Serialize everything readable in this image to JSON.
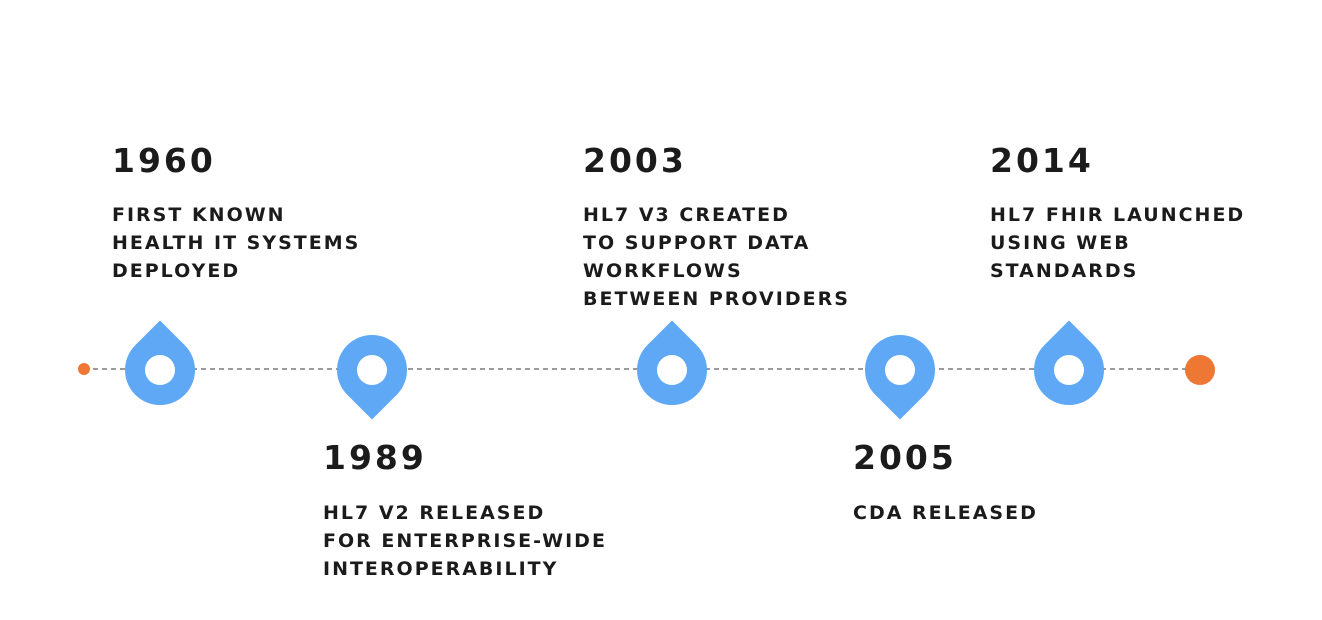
{
  "events": [
    {
      "year": "1960",
      "lines": [
        "FIRST KNOWN",
        "HEALTH IT SYSTEMS",
        "DEPLOYED"
      ]
    },
    {
      "year": "1989",
      "lines": [
        "HL7 V2 RELEASED",
        "FOR ENTERPRISE-WIDE",
        "INTEROPERABILITY"
      ]
    },
    {
      "year": "2003",
      "lines": [
        "HL7 V3 CREATED",
        "TO SUPPORT DATA",
        "WORKFLOWS",
        "BETWEEN PROVIDERS"
      ]
    },
    {
      "year": "2005",
      "lines": [
        "CDA RELEASED"
      ]
    },
    {
      "year": "2014",
      "lines": [
        "HL7 FHIR LAUNCHED",
        "USING WEB",
        "STANDARDS"
      ]
    }
  ]
}
